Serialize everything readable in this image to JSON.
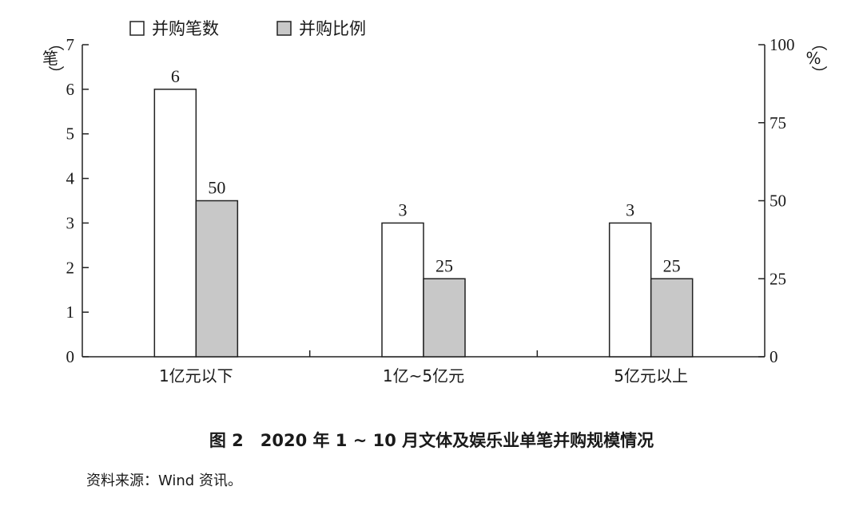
{
  "chart_data": {
    "type": "bar",
    "categories": [
      "1亿元以下",
      "1亿~5亿元",
      "5亿元以上"
    ],
    "series": [
      {
        "name": "并购笔数",
        "axis": "left",
        "values": [
          6,
          3,
          3
        ],
        "labels": [
          "6",
          "3",
          "3"
        ],
        "color": "#ffffff"
      },
      {
        "name": "并购比例",
        "axis": "right",
        "values": [
          50,
          25,
          25
        ],
        "labels": [
          "50",
          "25",
          "25"
        ],
        "color": "#c8c8c8"
      }
    ],
    "left_axis": {
      "unit": "（笔）",
      "ticks": [
        "0",
        "1",
        "2",
        "3",
        "4",
        "5",
        "6",
        "7"
      ],
      "ylim": [
        0,
        7
      ]
    },
    "right_axis": {
      "unit": "（%）",
      "ticks": [
        "0",
        "25",
        "50",
        "75",
        "100"
      ],
      "ylim": [
        0,
        100
      ]
    },
    "legend": {
      "placement": "top"
    },
    "grid": false
  },
  "caption": "图 2　2020 年 1 ~ 10 月文体及娱乐业单笔并购规模情况",
  "source": "资料来源：Wind 资讯。"
}
